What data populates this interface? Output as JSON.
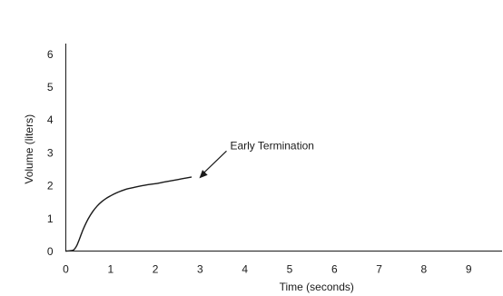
{
  "chart_data": {
    "type": "line",
    "title": "",
    "xlabel": "Time (seconds)",
    "ylabel": "Volume (liters)",
    "xlim": [
      0,
      9.8
    ],
    "ylim": [
      0,
      6.4
    ],
    "x_ticks": [
      "0",
      "1",
      "2",
      "3",
      "4",
      "5",
      "6",
      "7",
      "8",
      "9"
    ],
    "y_ticks": [
      "0",
      "1",
      "2",
      "3",
      "4",
      "5",
      "6"
    ],
    "grid": false,
    "legend": "none",
    "series": [
      {
        "color": "#1a1a1a",
        "x": [
          0,
          0.15,
          0.2,
          0.25,
          0.3,
          0.35,
          0.4,
          0.5,
          0.6,
          0.7,
          0.8,
          0.9,
          1.0,
          1.1,
          1.2,
          1.3,
          1.4,
          1.5,
          1.6,
          1.8,
          2.0,
          2.2,
          2.4,
          2.6,
          2.8
        ],
        "y": [
          0,
          0.02,
          0.07,
          0.18,
          0.35,
          0.53,
          0.7,
          0.98,
          1.2,
          1.37,
          1.5,
          1.6,
          1.68,
          1.75,
          1.81,
          1.86,
          1.9,
          1.93,
          1.96,
          2.01,
          2.05,
          2.1,
          2.15,
          2.2,
          2.25
        ]
      }
    ],
    "annotations": [
      {
        "text": "Early Termination",
        "target_x": 2.88,
        "target_y": 2.27
      }
    ]
  }
}
